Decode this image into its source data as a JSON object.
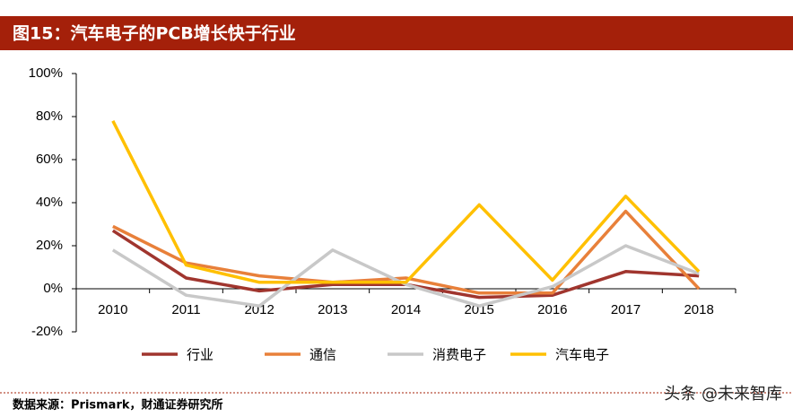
{
  "chart_data": {
    "type": "line",
    "title": "图15：汽车电子的PCB增长快于行业",
    "categories": [
      "2010",
      "2011",
      "2012",
      "2013",
      "2014",
      "2015",
      "2016",
      "2017",
      "2018"
    ],
    "series": [
      {
        "name": "行业",
        "color": "#a0352e",
        "values": [
          27,
          5,
          -1,
          2,
          2,
          -4,
          -3,
          8,
          6
        ]
      },
      {
        "name": "通信",
        "color": "#e8803a",
        "values": [
          29,
          12,
          6,
          3,
          5,
          -2,
          -2,
          36,
          0
        ]
      },
      {
        "name": "消费电子",
        "color": "#c8c8c8",
        "values": [
          18,
          -3,
          -8,
          18,
          2,
          -8,
          1,
          20,
          7
        ]
      },
      {
        "name": "汽车电子",
        "color": "#ffc000",
        "values": [
          78,
          11,
          3,
          3,
          3,
          39,
          4,
          43,
          8
        ]
      }
    ],
    "ylim": [
      -20,
      100
    ],
    "yticks": [
      {
        "value": -20,
        "label": "-20%"
      },
      {
        "value": 0,
        "label": "0%"
      },
      {
        "value": 20,
        "label": "20%"
      },
      {
        "value": 40,
        "label": "40%"
      },
      {
        "value": 60,
        "label": "60%"
      },
      {
        "value": 80,
        "label": "80%"
      },
      {
        "value": 100,
        "label": "100%"
      }
    ],
    "source": "数据来源：Prismark，财通证券研究所",
    "watermark": "头条 @未来智库"
  }
}
